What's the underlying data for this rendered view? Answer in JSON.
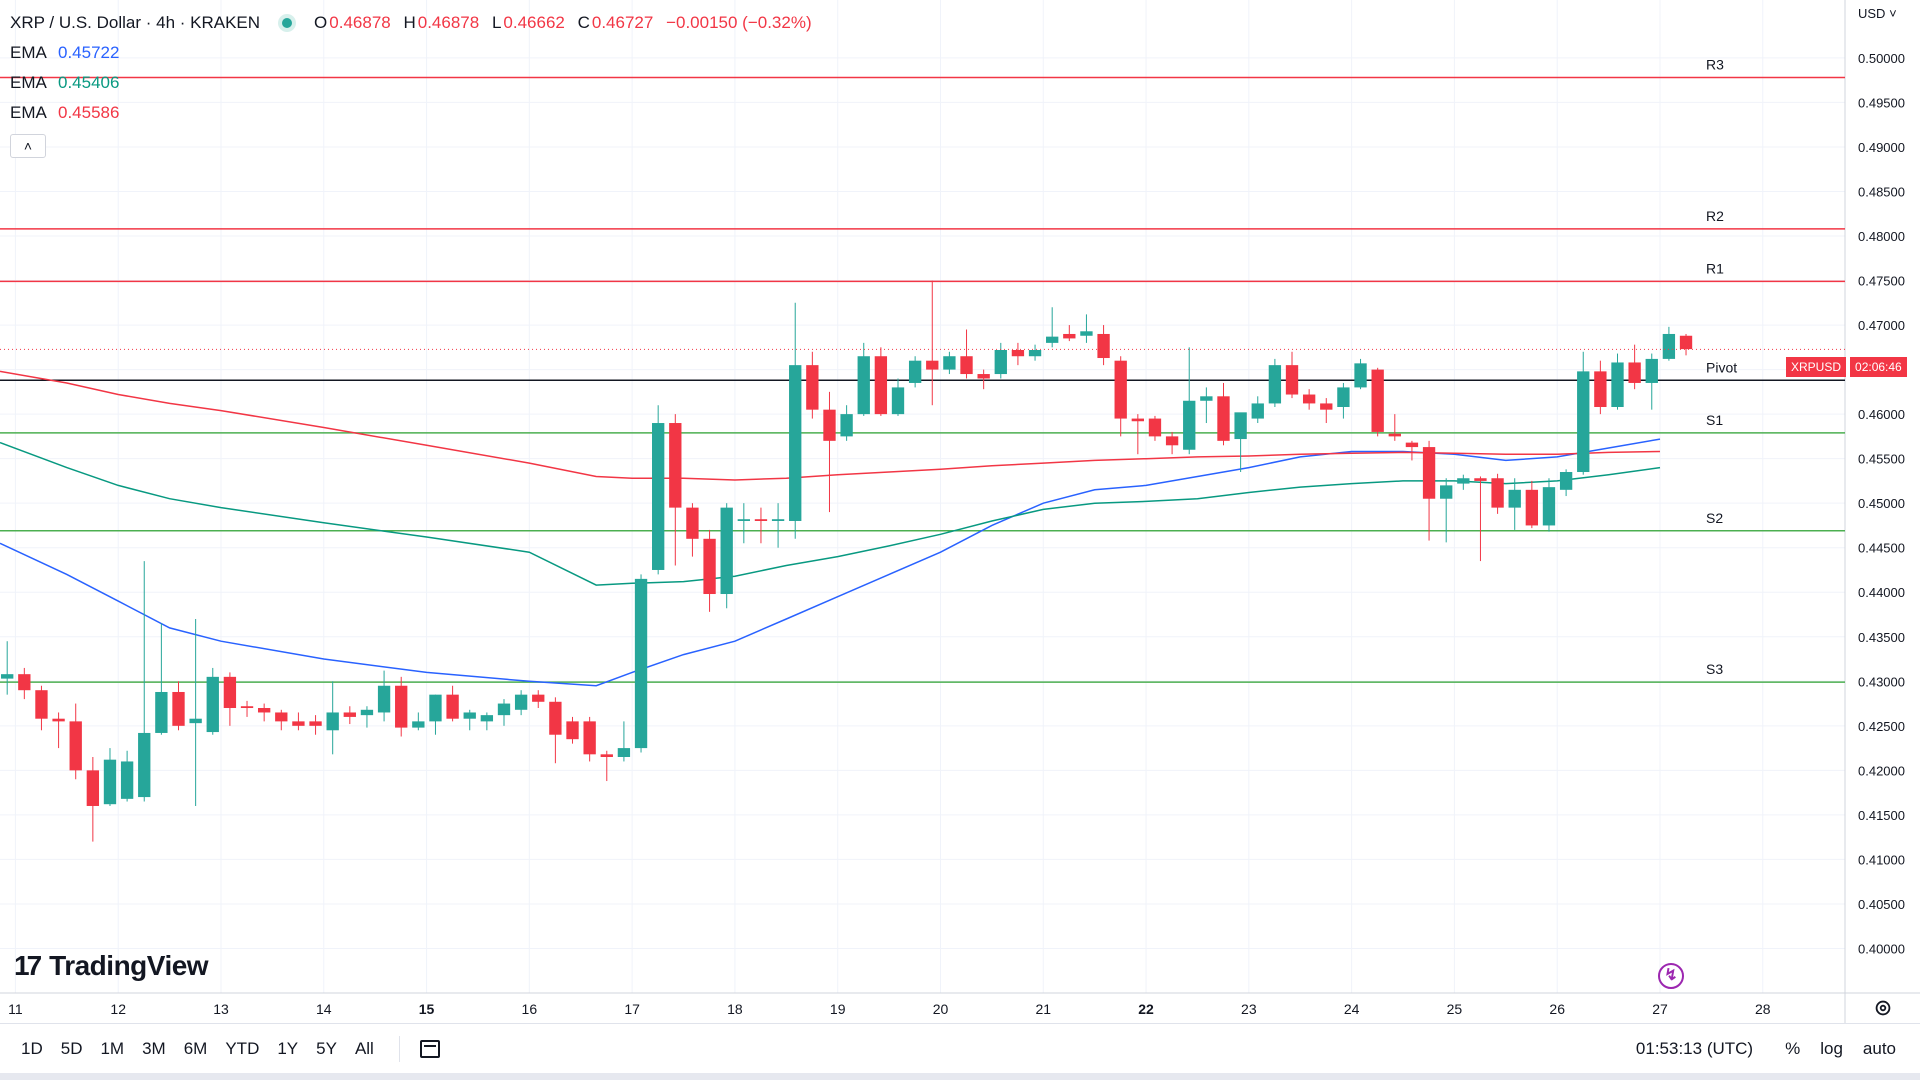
{
  "header": {
    "symbol_title": "XRP / U.S. Dollar · 4h · KRAKEN",
    "ohlc": {
      "o_label": "O",
      "o": "0.46878",
      "h_label": "H",
      "h": "0.46878",
      "l_label": "L",
      "l": "0.46662",
      "c_label": "C",
      "c": "0.46727",
      "change": "−0.00150 (−0.32%)"
    },
    "emas": [
      {
        "label": "EMA",
        "value": "0.45722",
        "color": "#2962ff"
      },
      {
        "label": "EMA",
        "value": "0.45406",
        "color": "#089981"
      },
      {
        "label": "EMA",
        "value": "0.45586",
        "color": "#f23645"
      }
    ],
    "collapse_icon": "chevron-up-icon"
  },
  "currency": "USD",
  "price_badge": {
    "symbol": "XRPUSD",
    "countdown": "02:06:46"
  },
  "logo": {
    "text": "TradingView",
    "icon": "tradingview-logo"
  },
  "bottom_bar": {
    "ranges": [
      "1D",
      "5D",
      "1M",
      "3M",
      "6M",
      "YTD",
      "1Y",
      "5Y",
      "All"
    ],
    "date_range_icon": "calendar-icon",
    "clock": "01:53:13 (UTC)",
    "percent": "%",
    "log": "log",
    "auto": "auto"
  },
  "chart_data": {
    "type": "candlestick",
    "title": "",
    "y_axis": {
      "min": 0.395,
      "max": 0.5065,
      "ticks": [
        "0.50000",
        "0.49500",
        "0.49000",
        "0.48500",
        "0.48000",
        "0.47500",
        "0.47000",
        "0.46500",
        "0.46000",
        "0.45500",
        "0.45000",
        "0.44500",
        "0.44000",
        "0.43500",
        "0.43000",
        "0.42500",
        "0.42000",
        "0.41500",
        "0.41000",
        "0.40500",
        "0.40000"
      ]
    },
    "x_axis": {
      "unit": "day",
      "start_day": 10.85,
      "end_day": 28.8,
      "ticks": [
        {
          "day": 11,
          "label": "11"
        },
        {
          "day": 12,
          "label": "12"
        },
        {
          "day": 13,
          "label": "13"
        },
        {
          "day": 14,
          "label": "14"
        },
        {
          "day": 15,
          "label": "15",
          "bold": true
        },
        {
          "day": 16,
          "label": "16"
        },
        {
          "day": 17,
          "label": "17"
        },
        {
          "day": 18,
          "label": "18"
        },
        {
          "day": 19,
          "label": "19"
        },
        {
          "day": 20,
          "label": "20"
        },
        {
          "day": 21,
          "label": "21"
        },
        {
          "day": 22,
          "label": "22",
          "bold": true
        },
        {
          "day": 23,
          "label": "23"
        },
        {
          "day": 24,
          "label": "24"
        },
        {
          "day": 25,
          "label": "25"
        },
        {
          "day": 26,
          "label": "26"
        },
        {
          "day": 27,
          "label": "27"
        },
        {
          "day": 28,
          "label": "28"
        }
      ]
    },
    "current_price": 0.46727,
    "levels": [
      {
        "label": "R3",
        "value": 0.4978,
        "color": "#f23645"
      },
      {
        "label": "R2",
        "value": 0.4808,
        "color": "#f23645"
      },
      {
        "label": "R1",
        "value": 0.4749,
        "color": "#f23645"
      },
      {
        "label": "Pivot",
        "value": 0.4638,
        "color": "#131722"
      },
      {
        "label": "S1",
        "value": 0.4579,
        "color": "#4caf50"
      },
      {
        "label": "S2",
        "value": 0.4469,
        "color": "#4caf50"
      },
      {
        "label": "S3",
        "value": 0.4299,
        "color": "#4caf50"
      }
    ],
    "candles": [
      {
        "o": 0.4303,
        "h": 0.4345,
        "l": 0.4285,
        "c": 0.4308
      },
      {
        "o": 0.4308,
        "h": 0.4315,
        "l": 0.428,
        "c": 0.429
      },
      {
        "o": 0.429,
        "h": 0.4295,
        "l": 0.4245,
        "c": 0.4258
      },
      {
        "o": 0.4258,
        "h": 0.4265,
        "l": 0.4225,
        "c": 0.4255
      },
      {
        "o": 0.4255,
        "h": 0.4275,
        "l": 0.419,
        "c": 0.42
      },
      {
        "o": 0.42,
        "h": 0.4215,
        "l": 0.412,
        "c": 0.416
      },
      {
        "o": 0.4162,
        "h": 0.4225,
        "l": 0.416,
        "c": 0.4212
      },
      {
        "o": 0.4168,
        "h": 0.4222,
        "l": 0.4165,
        "c": 0.421
      },
      {
        "o": 0.417,
        "h": 0.4435,
        "l": 0.4165,
        "c": 0.4242
      },
      {
        "o": 0.4242,
        "h": 0.4365,
        "l": 0.424,
        "c": 0.4288
      },
      {
        "o": 0.4288,
        "h": 0.43,
        "l": 0.4245,
        "c": 0.425
      },
      {
        "o": 0.4253,
        "h": 0.437,
        "l": 0.416,
        "c": 0.4258
      },
      {
        "o": 0.4243,
        "h": 0.4315,
        "l": 0.424,
        "c": 0.4305
      },
      {
        "o": 0.4305,
        "h": 0.431,
        "l": 0.425,
        "c": 0.427
      },
      {
        "o": 0.4272,
        "h": 0.4278,
        "l": 0.426,
        "c": 0.427
      },
      {
        "o": 0.427,
        "h": 0.4275,
        "l": 0.4255,
        "c": 0.4265
      },
      {
        "o": 0.4265,
        "h": 0.4268,
        "l": 0.4245,
        "c": 0.4255
      },
      {
        "o": 0.4255,
        "h": 0.4265,
        "l": 0.4245,
        "c": 0.425
      },
      {
        "o": 0.4255,
        "h": 0.4262,
        "l": 0.424,
        "c": 0.425
      },
      {
        "o": 0.4245,
        "h": 0.43,
        "l": 0.4218,
        "c": 0.4265
      },
      {
        "o": 0.4265,
        "h": 0.4272,
        "l": 0.4252,
        "c": 0.426
      },
      {
        "o": 0.4262,
        "h": 0.4272,
        "l": 0.4248,
        "c": 0.4268
      },
      {
        "o": 0.4265,
        "h": 0.4312,
        "l": 0.4255,
        "c": 0.4295
      },
      {
        "o": 0.4295,
        "h": 0.4305,
        "l": 0.4238,
        "c": 0.4248
      },
      {
        "o": 0.4248,
        "h": 0.4265,
        "l": 0.4245,
        "c": 0.4255
      },
      {
        "o": 0.4255,
        "h": 0.4285,
        "l": 0.424,
        "c": 0.4285
      },
      {
        "o": 0.4285,
        "h": 0.4295,
        "l": 0.4255,
        "c": 0.4258
      },
      {
        "o": 0.4258,
        "h": 0.4268,
        "l": 0.4245,
        "c": 0.4265
      },
      {
        "o": 0.4255,
        "h": 0.4265,
        "l": 0.4245,
        "c": 0.4262
      },
      {
        "o": 0.4262,
        "h": 0.428,
        "l": 0.425,
        "c": 0.4275
      },
      {
        "o": 0.4268,
        "h": 0.429,
        "l": 0.4262,
        "c": 0.4285
      },
      {
        "o": 0.4285,
        "h": 0.429,
        "l": 0.427,
        "c": 0.4277
      },
      {
        "o": 0.4277,
        "h": 0.4282,
        "l": 0.4208,
        "c": 0.424
      },
      {
        "o": 0.4255,
        "h": 0.426,
        "l": 0.423,
        "c": 0.4235
      },
      {
        "o": 0.4255,
        "h": 0.426,
        "l": 0.421,
        "c": 0.4218
      },
      {
        "o": 0.4218,
        "h": 0.4222,
        "l": 0.4188,
        "c": 0.4215
      },
      {
        "o": 0.4215,
        "h": 0.4255,
        "l": 0.421,
        "c": 0.4225
      },
      {
        "o": 0.4225,
        "h": 0.442,
        "l": 0.422,
        "c": 0.4415
      },
      {
        "o": 0.4425,
        "h": 0.461,
        "l": 0.442,
        "c": 0.459
      },
      {
        "o": 0.459,
        "h": 0.46,
        "l": 0.443,
        "c": 0.4495
      },
      {
        "o": 0.4495,
        "h": 0.45,
        "l": 0.444,
        "c": 0.446
      },
      {
        "o": 0.446,
        "h": 0.447,
        "l": 0.4378,
        "c": 0.4398
      },
      {
        "o": 0.4398,
        "h": 0.45,
        "l": 0.4382,
        "c": 0.4495
      },
      {
        "o": 0.448,
        "h": 0.45,
        "l": 0.4455,
        "c": 0.4482
      },
      {
        "o": 0.4482,
        "h": 0.4495,
        "l": 0.4455,
        "c": 0.448
      },
      {
        "o": 0.448,
        "h": 0.45,
        "l": 0.445,
        "c": 0.4482
      },
      {
        "o": 0.448,
        "h": 0.4725,
        "l": 0.446,
        "c": 0.4655
      },
      {
        "o": 0.4655,
        "h": 0.467,
        "l": 0.4595,
        "c": 0.4605
      },
      {
        "o": 0.4605,
        "h": 0.4625,
        "l": 0.449,
        "c": 0.457
      },
      {
        "o": 0.4575,
        "h": 0.461,
        "l": 0.457,
        "c": 0.46
      },
      {
        "o": 0.46,
        "h": 0.468,
        "l": 0.4598,
        "c": 0.4665
      },
      {
        "o": 0.4665,
        "h": 0.4675,
        "l": 0.4598,
        "c": 0.46
      },
      {
        "o": 0.46,
        "h": 0.464,
        "l": 0.4598,
        "c": 0.463
      },
      {
        "o": 0.4635,
        "h": 0.4665,
        "l": 0.463,
        "c": 0.466
      },
      {
        "o": 0.466,
        "h": 0.475,
        "l": 0.461,
        "c": 0.465
      },
      {
        "o": 0.465,
        "h": 0.467,
        "l": 0.4645,
        "c": 0.4665
      },
      {
        "o": 0.4665,
        "h": 0.4695,
        "l": 0.464,
        "c": 0.4645
      },
      {
        "o": 0.4645,
        "h": 0.465,
        "l": 0.4628,
        "c": 0.464
      },
      {
        "o": 0.4645,
        "h": 0.468,
        "l": 0.464,
        "c": 0.4672
      },
      {
        "o": 0.4672,
        "h": 0.468,
        "l": 0.4655,
        "c": 0.4665
      },
      {
        "o": 0.4665,
        "h": 0.4678,
        "l": 0.466,
        "c": 0.4672
      },
      {
        "o": 0.468,
        "h": 0.472,
        "l": 0.4675,
        "c": 0.4687
      },
      {
        "o": 0.469,
        "h": 0.47,
        "l": 0.4682,
        "c": 0.4685
      },
      {
        "o": 0.4688,
        "h": 0.4712,
        "l": 0.468,
        "c": 0.4693
      },
      {
        "o": 0.469,
        "h": 0.47,
        "l": 0.4655,
        "c": 0.4663
      },
      {
        "o": 0.466,
        "h": 0.4665,
        "l": 0.4575,
        "c": 0.4595
      },
      {
        "o": 0.4595,
        "h": 0.46,
        "l": 0.4555,
        "c": 0.4592
      },
      {
        "o": 0.4595,
        "h": 0.4598,
        "l": 0.457,
        "c": 0.4575
      },
      {
        "o": 0.4575,
        "h": 0.458,
        "l": 0.4555,
        "c": 0.4565
      },
      {
        "o": 0.456,
        "h": 0.4675,
        "l": 0.4555,
        "c": 0.4615
      },
      {
        "o": 0.4615,
        "h": 0.463,
        "l": 0.459,
        "c": 0.462
      },
      {
        "o": 0.462,
        "h": 0.4635,
        "l": 0.4565,
        "c": 0.457
      },
      {
        "o": 0.4572,
        "h": 0.46,
        "l": 0.4535,
        "c": 0.4602
      },
      {
        "o": 0.4595,
        "h": 0.462,
        "l": 0.459,
        "c": 0.4612
      },
      {
        "o": 0.4612,
        "h": 0.4662,
        "l": 0.4608,
        "c": 0.4655
      },
      {
        "o": 0.4655,
        "h": 0.467,
        "l": 0.4618,
        "c": 0.4622
      },
      {
        "o": 0.4622,
        "h": 0.4628,
        "l": 0.4605,
        "c": 0.4612
      },
      {
        "o": 0.4612,
        "h": 0.4618,
        "l": 0.459,
        "c": 0.4605
      },
      {
        "o": 0.4608,
        "h": 0.4635,
        "l": 0.4595,
        "c": 0.463
      },
      {
        "o": 0.463,
        "h": 0.4662,
        "l": 0.4628,
        "c": 0.4657
      },
      {
        "o": 0.465,
        "h": 0.4652,
        "l": 0.4575,
        "c": 0.458
      },
      {
        "o": 0.4578,
        "h": 0.46,
        "l": 0.457,
        "c": 0.4575
      },
      {
        "o": 0.4568,
        "h": 0.457,
        "l": 0.4548,
        "c": 0.4563
      },
      {
        "o": 0.4563,
        "h": 0.457,
        "l": 0.4458,
        "c": 0.4505
      },
      {
        "o": 0.4505,
        "h": 0.4528,
        "l": 0.4456,
        "c": 0.452
      },
      {
        "o": 0.4522,
        "h": 0.4532,
        "l": 0.4515,
        "c": 0.4528
      },
      {
        "o": 0.4528,
        "h": 0.453,
        "l": 0.4435,
        "c": 0.4525
      },
      {
        "o": 0.4528,
        "h": 0.4533,
        "l": 0.4488,
        "c": 0.4495
      },
      {
        "o": 0.4495,
        "h": 0.4528,
        "l": 0.447,
        "c": 0.4515
      },
      {
        "o": 0.4515,
        "h": 0.4525,
        "l": 0.4472,
        "c": 0.4475
      },
      {
        "o": 0.4475,
        "h": 0.4528,
        "l": 0.4468,
        "c": 0.4518
      },
      {
        "o": 0.4515,
        "h": 0.4538,
        "l": 0.4508,
        "c": 0.4535
      },
      {
        "o": 0.4535,
        "h": 0.467,
        "l": 0.4532,
        "c": 0.4648
      },
      {
        "o": 0.4648,
        "h": 0.466,
        "l": 0.46,
        "c": 0.4608
      },
      {
        "o": 0.4608,
        "h": 0.4668,
        "l": 0.4605,
        "c": 0.4658
      },
      {
        "o": 0.4658,
        "h": 0.4678,
        "l": 0.4628,
        "c": 0.4635
      },
      {
        "o": 0.4635,
        "h": 0.4668,
        "l": 0.4605,
        "c": 0.4662
      },
      {
        "o": 0.4662,
        "h": 0.4698,
        "l": 0.466,
        "c": 0.469
      },
      {
        "o": 0.4688,
        "h": 0.469,
        "l": 0.4666,
        "c": 0.4673
      }
    ],
    "series": [
      {
        "name": "EMA 0.45722",
        "color": "#2962ff",
        "points": [
          [
            10.85,
            0.4455
          ],
          [
            11.5,
            0.442
          ],
          [
            12.0,
            0.439
          ],
          [
            12.5,
            0.436
          ],
          [
            13.0,
            0.4345
          ],
          [
            14.0,
            0.4325
          ],
          [
            15.0,
            0.431
          ],
          [
            16.0,
            0.43
          ],
          [
            16.65,
            0.4295
          ],
          [
            17.0,
            0.431
          ],
          [
            17.5,
            0.433
          ],
          [
            18.0,
            0.4345
          ],
          [
            18.5,
            0.437
          ],
          [
            19.0,
            0.4395
          ],
          [
            19.5,
            0.442
          ],
          [
            20.0,
            0.4445
          ],
          [
            20.5,
            0.4475
          ],
          [
            21.0,
            0.45
          ],
          [
            21.5,
            0.4515
          ],
          [
            22.0,
            0.452
          ],
          [
            22.5,
            0.453
          ],
          [
            23.0,
            0.454
          ],
          [
            23.5,
            0.4552
          ],
          [
            24.0,
            0.4558
          ],
          [
            24.5,
            0.4558
          ],
          [
            25.0,
            0.4555
          ],
          [
            25.5,
            0.4548
          ],
          [
            26.0,
            0.4552
          ],
          [
            26.5,
            0.4562
          ],
          [
            27.0,
            0.4572
          ]
        ]
      },
      {
        "name": "EMA 0.45406",
        "color": "#089981",
        "points": [
          [
            10.85,
            0.4568
          ],
          [
            11.5,
            0.454
          ],
          [
            12.0,
            0.452
          ],
          [
            12.5,
            0.4505
          ],
          [
            13.0,
            0.4495
          ],
          [
            14.0,
            0.4478
          ],
          [
            15.0,
            0.4462
          ],
          [
            16.0,
            0.4445
          ],
          [
            16.65,
            0.4408
          ],
          [
            17.0,
            0.441
          ],
          [
            17.5,
            0.4412
          ],
          [
            18.0,
            0.4418
          ],
          [
            18.5,
            0.443
          ],
          [
            19.0,
            0.444
          ],
          [
            19.5,
            0.4452
          ],
          [
            20.0,
            0.4465
          ],
          [
            20.5,
            0.448
          ],
          [
            21.0,
            0.4493
          ],
          [
            21.5,
            0.45
          ],
          [
            22.0,
            0.4502
          ],
          [
            22.5,
            0.4505
          ],
          [
            23.0,
            0.4512
          ],
          [
            23.5,
            0.4518
          ],
          [
            24.0,
            0.4522
          ],
          [
            24.5,
            0.4525
          ],
          [
            25.0,
            0.4525
          ],
          [
            25.5,
            0.4522
          ],
          [
            26.0,
            0.4525
          ],
          [
            26.5,
            0.4532
          ],
          [
            27.0,
            0.454
          ]
        ]
      },
      {
        "name": "EMA 0.45586",
        "color": "#f23645",
        "points": [
          [
            10.85,
            0.4648
          ],
          [
            11.5,
            0.4635
          ],
          [
            12.0,
            0.4622
          ],
          [
            12.5,
            0.4612
          ],
          [
            13.0,
            0.4604
          ],
          [
            14.0,
            0.4585
          ],
          [
            15.0,
            0.4565
          ],
          [
            16.0,
            0.4545
          ],
          [
            16.65,
            0.453
          ],
          [
            17.0,
            0.4528
          ],
          [
            17.5,
            0.4528
          ],
          [
            18.0,
            0.4526
          ],
          [
            18.5,
            0.4528
          ],
          [
            19.0,
            0.4532
          ],
          [
            19.5,
            0.4535
          ],
          [
            20.0,
            0.4538
          ],
          [
            20.5,
            0.4542
          ],
          [
            21.0,
            0.4545
          ],
          [
            21.5,
            0.4548
          ],
          [
            22.0,
            0.455
          ],
          [
            22.5,
            0.4552
          ],
          [
            23.0,
            0.4553
          ],
          [
            23.5,
            0.4555
          ],
          [
            24.0,
            0.4556
          ],
          [
            24.5,
            0.4557
          ],
          [
            25.0,
            0.4556
          ],
          [
            25.5,
            0.4555
          ],
          [
            26.0,
            0.4555
          ],
          [
            26.5,
            0.4557
          ],
          [
            27.0,
            0.4558
          ]
        ]
      }
    ],
    "colors": {
      "up": "#26a69a",
      "down": "#f23645"
    }
  }
}
